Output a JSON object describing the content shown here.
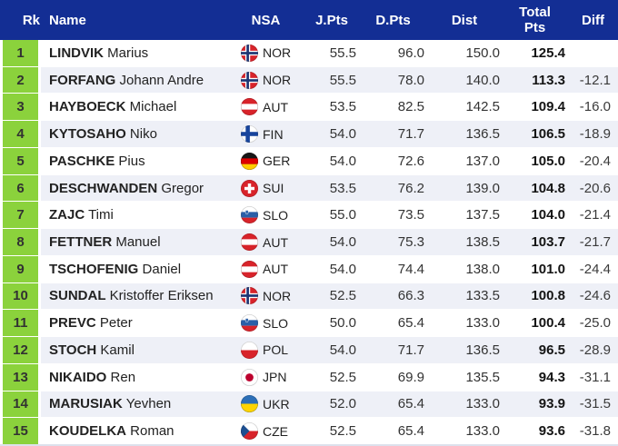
{
  "colors": {
    "header_bg": "#132e94",
    "header_text": "#ffffff",
    "rank_bg": "#8bd23c",
    "row_bg": "#ffffff",
    "row_alt_bg": "#eef0f7",
    "text": "#333333"
  },
  "header": {
    "columns": [
      {
        "key": "rk",
        "label": "Rk"
      },
      {
        "key": "name",
        "label": "Name"
      },
      {
        "key": "nsa",
        "label": "NSA"
      },
      {
        "key": "jpts",
        "label": "J.Pts"
      },
      {
        "key": "dpts",
        "label": "D.Pts"
      },
      {
        "key": "dist",
        "label": "Dist"
      },
      {
        "key": "total",
        "label": "Total\nPts"
      },
      {
        "key": "diff",
        "label": "Diff"
      }
    ]
  },
  "rows": [
    {
      "rank": "1",
      "surname": "LINDVIK",
      "firstname": "Marius",
      "nsa": "NOR",
      "flag": "nor-flag-icon",
      "jpts": "55.5",
      "dpts": "96.0",
      "dist": "150.0",
      "total": "125.4",
      "diff": ""
    },
    {
      "rank": "2",
      "surname": "FORFANG",
      "firstname": "Johann Andre",
      "nsa": "NOR",
      "flag": "nor-flag-icon",
      "jpts": "55.5",
      "dpts": "78.0",
      "dist": "140.0",
      "total": "113.3",
      "diff": "-12.1"
    },
    {
      "rank": "3",
      "surname": "HAYBOECK",
      "firstname": "Michael",
      "nsa": "AUT",
      "flag": "aut-flag-icon",
      "jpts": "53.5",
      "dpts": "82.5",
      "dist": "142.5",
      "total": "109.4",
      "diff": "-16.0"
    },
    {
      "rank": "4",
      "surname": "KYTOSAHO",
      "firstname": "Niko",
      "nsa": "FIN",
      "flag": "fin-flag-icon",
      "jpts": "54.0",
      "dpts": "71.7",
      "dist": "136.5",
      "total": "106.5",
      "diff": "-18.9"
    },
    {
      "rank": "5",
      "surname": "PASCHKE",
      "firstname": "Pius",
      "nsa": "GER",
      "flag": "ger-flag-icon",
      "jpts": "54.0",
      "dpts": "72.6",
      "dist": "137.0",
      "total": "105.0",
      "diff": "-20.4"
    },
    {
      "rank": "6",
      "surname": "DESCHWANDEN",
      "firstname": "Gregor",
      "nsa": "SUI",
      "flag": "sui-flag-icon",
      "jpts": "53.5",
      "dpts": "76.2",
      "dist": "139.0",
      "total": "104.8",
      "diff": "-20.6"
    },
    {
      "rank": "7",
      "surname": "ZAJC",
      "firstname": "Timi",
      "nsa": "SLO",
      "flag": "slo-flag-icon",
      "jpts": "55.0",
      "dpts": "73.5",
      "dist": "137.5",
      "total": "104.0",
      "diff": "-21.4"
    },
    {
      "rank": "8",
      "surname": "FETTNER",
      "firstname": "Manuel",
      "nsa": "AUT",
      "flag": "aut-flag-icon",
      "jpts": "54.0",
      "dpts": "75.3",
      "dist": "138.5",
      "total": "103.7",
      "diff": "-21.7"
    },
    {
      "rank": "9",
      "surname": "TSCHOFENIG",
      "firstname": "Daniel",
      "nsa": "AUT",
      "flag": "aut-flag-icon",
      "jpts": "54.0",
      "dpts": "74.4",
      "dist": "138.0",
      "total": "101.0",
      "diff": "-24.4"
    },
    {
      "rank": "10",
      "surname": "SUNDAL",
      "firstname": "Kristoffer Eriksen",
      "nsa": "NOR",
      "flag": "nor-flag-icon",
      "jpts": "52.5",
      "dpts": "66.3",
      "dist": "133.5",
      "total": "100.8",
      "diff": "-24.6"
    },
    {
      "rank": "11",
      "surname": "PREVC",
      "firstname": "Peter",
      "nsa": "SLO",
      "flag": "slo-flag-icon",
      "jpts": "50.0",
      "dpts": "65.4",
      "dist": "133.0",
      "total": "100.4",
      "diff": "-25.0"
    },
    {
      "rank": "12",
      "surname": "STOCH",
      "firstname": "Kamil",
      "nsa": "POL",
      "flag": "pol-flag-icon",
      "jpts": "54.0",
      "dpts": "71.7",
      "dist": "136.5",
      "total": "96.5",
      "diff": "-28.9"
    },
    {
      "rank": "13",
      "surname": "NIKAIDO",
      "firstname": "Ren",
      "nsa": "JPN",
      "flag": "jpn-flag-icon",
      "jpts": "52.5",
      "dpts": "69.9",
      "dist": "135.5",
      "total": "94.3",
      "diff": "-31.1"
    },
    {
      "rank": "14",
      "surname": "MARUSIAK",
      "firstname": "Yevhen",
      "nsa": "UKR",
      "flag": "ukr-flag-icon",
      "jpts": "52.0",
      "dpts": "65.4",
      "dist": "133.0",
      "total": "93.9",
      "diff": "-31.5"
    },
    {
      "rank": "15",
      "surname": "KOUDELKA",
      "firstname": "Roman",
      "nsa": "CZE",
      "flag": "cze-flag-icon",
      "jpts": "52.5",
      "dpts": "65.4",
      "dist": "133.0",
      "total": "93.6",
      "diff": "-31.8"
    }
  ]
}
